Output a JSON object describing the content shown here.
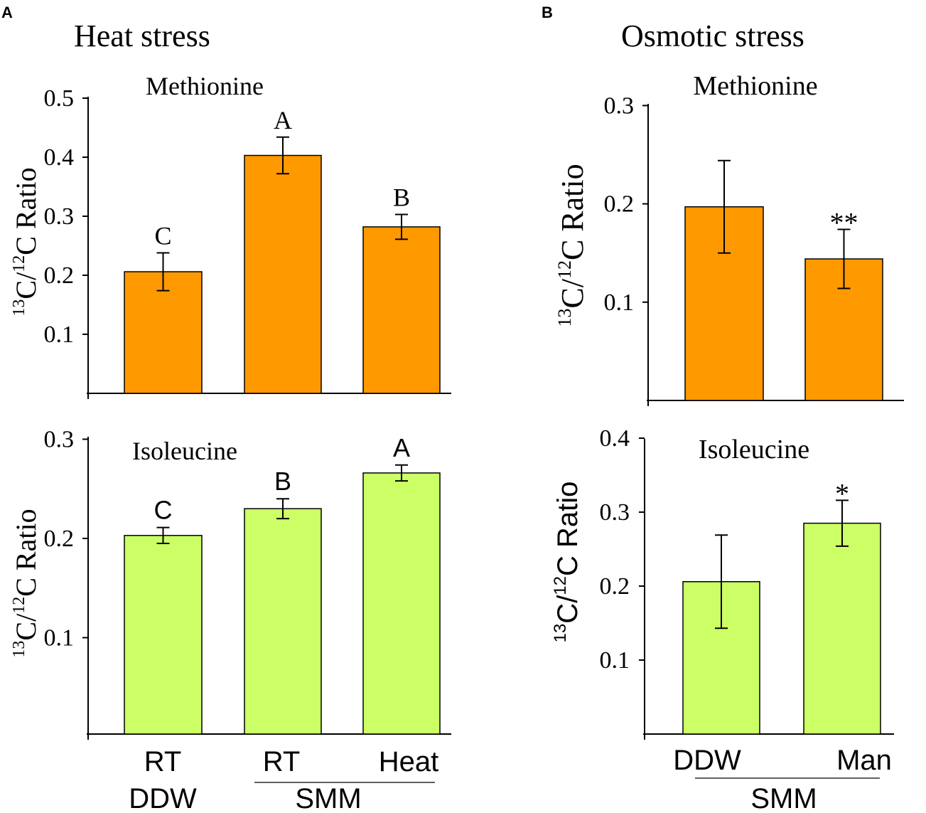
{
  "panels": {
    "A": {
      "label": "A",
      "title": "Heat stress"
    },
    "B": {
      "label": "B",
      "title": "Osmotic stress"
    }
  },
  "y_label": {
    "sup1": "13",
    "mid": "C/",
    "sup2": "12",
    "end": "C Ratio"
  },
  "x_groups": {
    "A": {
      "line1": [
        "RT",
        "RT",
        "Heat"
      ],
      "line2_single": "DDW",
      "line2_group": "SMM"
    },
    "B": {
      "line1": [
        "DDW",
        "Man"
      ],
      "line2_group": "SMM"
    }
  },
  "colors": {
    "methionine": "#ff9900",
    "isoleucine": "#ccff66",
    "axis": "#000000"
  },
  "chart_data": [
    {
      "id": "A-methionine",
      "type": "bar",
      "panel": "A",
      "title": "Methionine",
      "ylabel": "13C/12C Ratio",
      "categories": [
        "RT DDW",
        "RT SMM",
        "Heat SMM"
      ],
      "values": [
        0.206,
        0.403,
        0.282
      ],
      "errors": [
        0.032,
        0.031,
        0.021
      ],
      "annotations": [
        "C",
        "A",
        "B"
      ],
      "ylim": [
        0,
        0.5
      ],
      "yticks": [
        "0.1",
        "0.2",
        "0.3",
        "0.4",
        "0.5"
      ]
    },
    {
      "id": "A-isoleucine",
      "type": "bar",
      "panel": "A",
      "title": "Isoleucine",
      "ylabel": "13C/12C Ratio",
      "categories": [
        "RT DDW",
        "RT SMM",
        "Heat SMM"
      ],
      "values": [
        0.203,
        0.23,
        0.266
      ],
      "errors": [
        0.008,
        0.01,
        0.008
      ],
      "annotations": [
        "C",
        "B",
        "A"
      ],
      "ylim": [
        0,
        0.3
      ],
      "yticks": [
        "0.1",
        "0.2",
        "0.3"
      ]
    },
    {
      "id": "B-methionine",
      "type": "bar",
      "panel": "B",
      "title": "Methionine",
      "ylabel": "13C/12C Ratio",
      "categories": [
        "DDW",
        "Man SMM"
      ],
      "values": [
        0.197,
        0.144
      ],
      "errors": [
        0.047,
        0.03
      ],
      "annotations": [
        "",
        "**"
      ],
      "ylim": [
        0,
        0.3
      ],
      "yticks": [
        "0.1",
        "0.2",
        "0.3"
      ]
    },
    {
      "id": "B-isoleucine",
      "type": "bar",
      "panel": "B",
      "title": "Isoleucine",
      "ylabel": "13C/12C Ratio",
      "categories": [
        "DDW",
        "Man SMM"
      ],
      "values": [
        0.206,
        0.285
      ],
      "errors": [
        0.063,
        0.031
      ],
      "annotations": [
        "",
        "*"
      ],
      "ylim": [
        0,
        0.4
      ],
      "yticks": [
        "0.1",
        "0.2",
        "0.3",
        "0.4"
      ]
    }
  ]
}
